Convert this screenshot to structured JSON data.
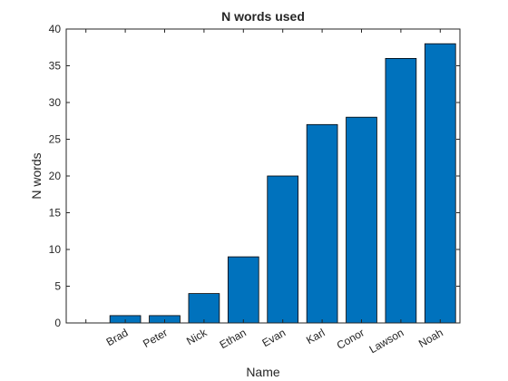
{
  "chart_data": {
    "type": "bar",
    "title": "N words used",
    "xlabel": "Name",
    "ylabel": "N words",
    "categories": [
      "",
      "Brad",
      "Peter",
      "Nick",
      "Ethan",
      "Evan",
      "Karl",
      "Conor",
      "Lawson",
      "Noah"
    ],
    "values": [
      0,
      1,
      1,
      4,
      9,
      20,
      27,
      28,
      36,
      38
    ],
    "ylim": [
      0,
      40
    ],
    "yticks": [
      "0",
      "5",
      "10",
      "15",
      "20",
      "25",
      "30",
      "35",
      "40"
    ],
    "grid": false,
    "legend": "none",
    "colors": {
      "bar_fill": "#0072BD",
      "bar_edge": "#000000",
      "axis": "#262626",
      "background": "#ffffff"
    }
  }
}
